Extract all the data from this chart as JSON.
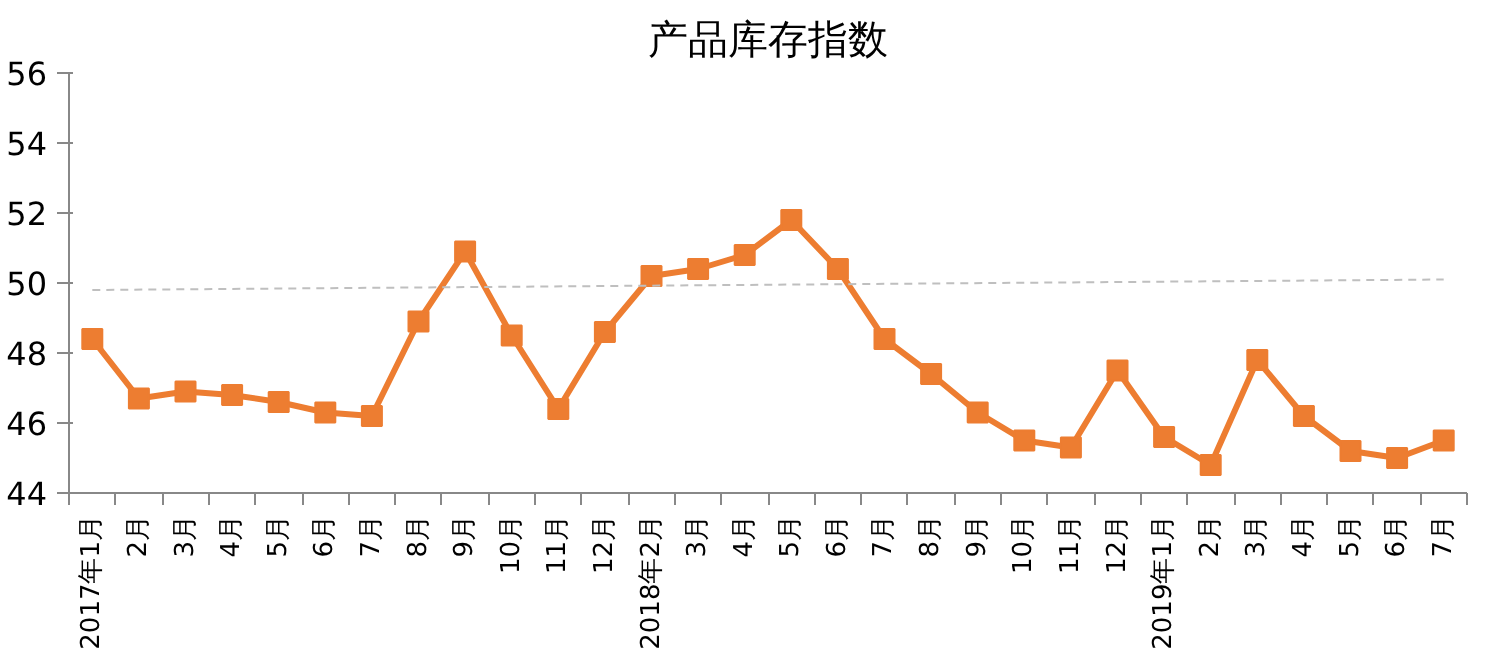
{
  "chart_data": {
    "type": "line",
    "title": "产品库存指数",
    "categories": [
      "2017年1月",
      "2月",
      "3月",
      "4月",
      "5月",
      "6月",
      "7月",
      "8月",
      "9月",
      "10月",
      "11月",
      "12月",
      "2018年2月",
      "3月",
      "4月",
      "5月",
      "6月",
      "7月",
      "8月",
      "9月",
      "10月",
      "11月",
      "12月",
      "2019年1月",
      "2月",
      "3月",
      "4月",
      "5月",
      "6月",
      "7月"
    ],
    "series": [
      {
        "color": "#ed7d31",
        "marker": "square",
        "line_style": "solid",
        "values": [
          48.4,
          46.7,
          46.9,
          46.8,
          46.6,
          46.3,
          46.2,
          48.9,
          50.9,
          48.5,
          46.4,
          48.6,
          50.2,
          50.4,
          50.8,
          51.8,
          50.4,
          48.4,
          47.4,
          46.3,
          45.5,
          45.3,
          47.5,
          45.6,
          44.8,
          47.8,
          46.2,
          45.2,
          45.0,
          45.5
        ]
      },
      {
        "color": "#bfbfbf",
        "marker": "none",
        "line_style": "dashed",
        "values": [
          49.8,
          null,
          null,
          null,
          null,
          null,
          null,
          null,
          null,
          null,
          null,
          null,
          null,
          null,
          null,
          null,
          null,
          null,
          null,
          null,
          null,
          null,
          null,
          null,
          null,
          null,
          null,
          null,
          null,
          50.1
        ]
      }
    ],
    "ylim": [
      44,
      56
    ],
    "yticks": [
      44,
      46,
      48,
      50,
      52,
      54,
      56
    ],
    "grid": false
  }
}
